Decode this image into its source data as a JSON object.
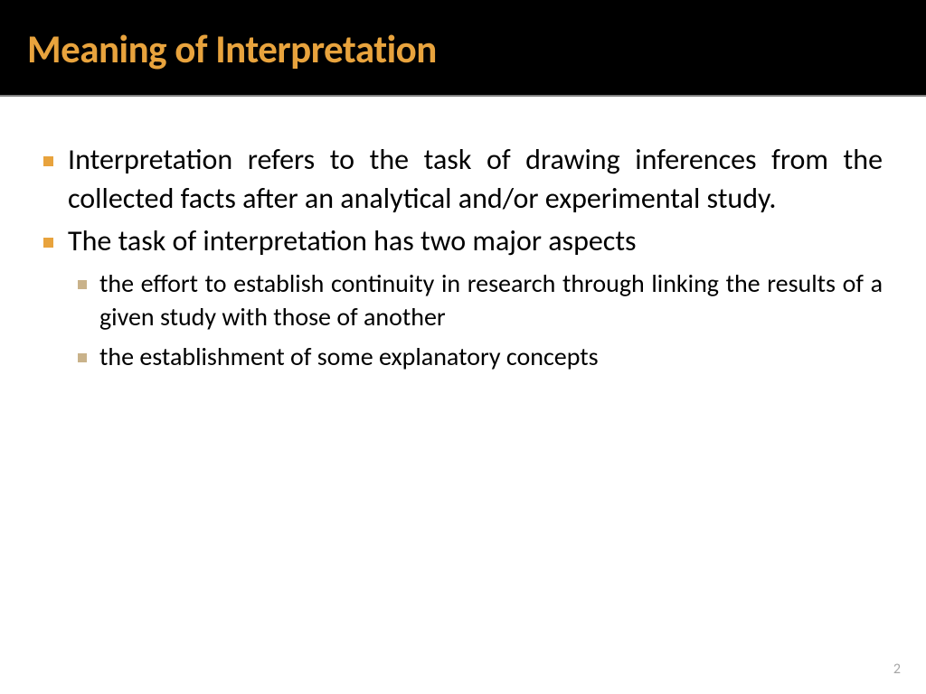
{
  "slide": {
    "title": "Meaning of Interpretation",
    "colors": {
      "header_bg": "#000000",
      "title_color": "#e8a33d",
      "body_bg": "#ffffff",
      "bullet_l1": "#e8a33d",
      "bullet_l2": "#c9b28a",
      "text_color": "#000000",
      "page_num_color": "#a6a6a6",
      "divider": "#808080"
    },
    "typography": {
      "title_fontsize": 43,
      "title_weight": "bold",
      "body_l1_fontsize": 32,
      "body_l2_fontsize": 28,
      "font_family": "Calibri"
    },
    "bullets": [
      {
        "level": 1,
        "text": "Interpretation refers to the task of drawing inferences from the collected facts after an analytical and/or experimental study."
      },
      {
        "level": 1,
        "text": "The task of interpretation has two major aspects"
      },
      {
        "level": 2,
        "text": "the effort to establish continuity in research through linking the results of a given study with those of another"
      },
      {
        "level": 2,
        "text": "the establishment of some explanatory concepts"
      }
    ],
    "page_number": "2"
  }
}
